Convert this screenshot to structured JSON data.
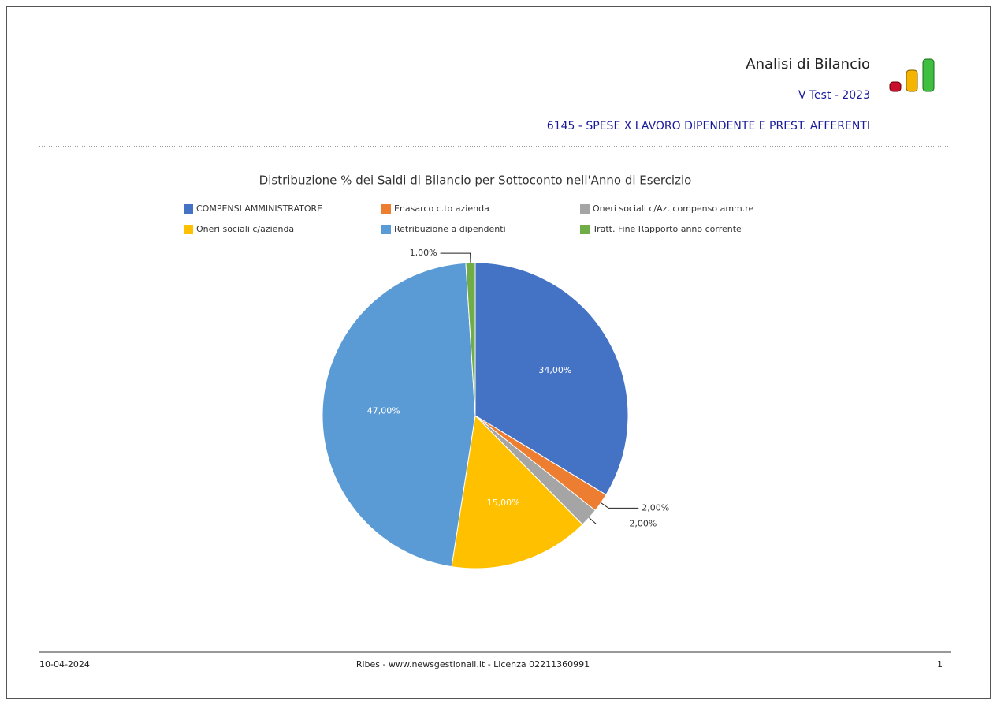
{
  "header": {
    "title": "Analisi di Bilancio",
    "subtitle": "V Test - 2023",
    "account": "6145 - SPESE X LAVORO DIPENDENTE E PREST. AFFERENTI"
  },
  "chart_data": {
    "type": "pie",
    "title": "Distribuzione % dei Saldi di Bilancio per Sottoconto nell'Anno di Esercizio",
    "categories": [
      "COMPENSI AMMINISTRATORE",
      "Enasarco c.to azienda",
      "Oneri sociali c/Az. compenso amm.re",
      "Oneri sociali c/azienda",
      "Retribuzione a dipendenti",
      "Tratt. Fine Rapporto anno corrente"
    ],
    "values": [
      34,
      2,
      2,
      15,
      47,
      1
    ],
    "value_labels": [
      "34,00%",
      "2,00%",
      "2,00%",
      "15,00%",
      "47,00%",
      "1,00%"
    ],
    "colors": [
      "#4472c4",
      "#ed7d31",
      "#a5a5a5",
      "#ffc000",
      "#5b9bd5",
      "#70ad47"
    ]
  },
  "footer": {
    "date": "10-04-2024",
    "center": "Ribes - www.newsgestionali.it - Licenza 02211360991",
    "page": "1"
  }
}
